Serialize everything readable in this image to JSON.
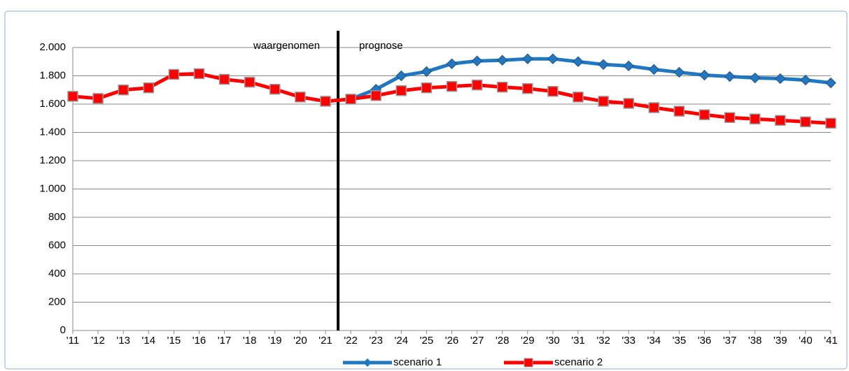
{
  "chart_data": {
    "type": "line",
    "categories": [
      "'11",
      "'12",
      "'13",
      "'14",
      "'15",
      "'16",
      "'17",
      "'18",
      "'19",
      "'20",
      "'21",
      "'22",
      "'23",
      "'24",
      "'25",
      "'26",
      "'27",
      "'28",
      "'29",
      "'30",
      "'31",
      "'32",
      "'33",
      "'34",
      "'35",
      "'36",
      "'37",
      "'38",
      "'39",
      "'40",
      "'41"
    ],
    "series": [
      {
        "name": "scenario 1",
        "color": "#1f78c1",
        "marker": "diamond",
        "values": [
          null,
          null,
          null,
          null,
          null,
          null,
          null,
          null,
          null,
          null,
          1620,
          1635,
          1705,
          1800,
          1830,
          1885,
          1905,
          1910,
          1920,
          1920,
          1900,
          1880,
          1870,
          1845,
          1825,
          1805,
          1795,
          1785,
          1780,
          1770,
          1750
        ]
      },
      {
        "name": "scenario 2",
        "color": "#ff0000",
        "marker": "square",
        "values": [
          1655,
          1640,
          1700,
          1715,
          1810,
          1815,
          1775,
          1755,
          1705,
          1650,
          1620,
          1635,
          1660,
          1695,
          1715,
          1725,
          1735,
          1720,
          1710,
          1690,
          1650,
          1620,
          1605,
          1575,
          1550,
          1525,
          1505,
          1495,
          1485,
          1475,
          1465
        ]
      }
    ],
    "annotations": [
      "waargenomen",
      "prognose"
    ],
    "ylim": [
      0,
      2000
    ],
    "yticks": [
      0,
      200,
      400,
      600,
      800,
      {
        "value": 1000,
        "label": "1.000"
      },
      {
        "value": 1200,
        "label": "1.200"
      },
      {
        "value": 1400,
        "label": "1.400"
      },
      {
        "value": 1600,
        "label": "1.600"
      },
      {
        "value": 1800,
        "label": "1.800"
      },
      {
        "value": 2000,
        "label": "2.000"
      }
    ],
    "grid": true,
    "legend": "bottom"
  }
}
